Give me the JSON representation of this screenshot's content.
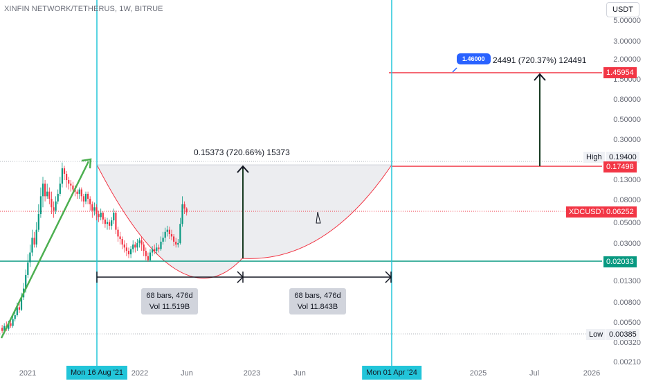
{
  "header": {
    "title": "XINFIN NETWORK/TETHERUS, 1W, BITRUE",
    "currency_button": "USDT"
  },
  "chart_data": {
    "type": "candlestick",
    "scale": "log",
    "yticks": [
      "5.00000",
      "3.00000",
      "2.00000",
      "1.50000",
      "0.80000",
      "0.50000",
      "0.30000",
      "0.13000",
      "0.08000",
      "0.05000",
      "0.03000",
      "0.01300",
      "0.00800",
      "0.00500",
      "0.00320",
      "0.00210"
    ],
    "xticks": [
      "2021",
      "2022",
      "Jun",
      "2023",
      "Jun",
      "2025",
      "Jul",
      "2026"
    ],
    "price_tags": [
      {
        "label": "",
        "value": "1.45954",
        "color": "#f23645"
      },
      {
        "label": "High",
        "value": "0.19400",
        "color": "#eff1f5"
      },
      {
        "label": "",
        "value": "0.17498",
        "color": "#f23645"
      },
      {
        "label": "XDCUSDT",
        "value": "0.06252",
        "color": "#f23645"
      },
      {
        "label": "",
        "value": "0.02033",
        "color": "#089981"
      },
      {
        "label": "Low",
        "value": "0.00385",
        "color": "#eff1f5"
      }
    ],
    "vertical_markers": [
      "Mon 16 Aug '21",
      "Mon 01 Apr '24"
    ],
    "measurements": [
      {
        "text": "68 bars, 476d",
        "vol": "Vol 11.519B"
      },
      {
        "text": "68 bars, 476d",
        "vol": "Vol 11.843B"
      }
    ],
    "annotations": {
      "cup_target": "0.15373 (720.66%) 15373",
      "breakout_target": "24491 (720.37%) 124491",
      "callout": "1.46000"
    },
    "candles": [
      [
        "2020-10",
        0.0045,
        0.0042,
        0.0048,
        0.004
      ],
      [
        "2020-11",
        0.0042,
        0.0047,
        0.005,
        0.004
      ],
      [
        "2020-12",
        0.0047,
        0.0044,
        0.0052,
        0.0042
      ],
      [
        "2020-12",
        0.0044,
        0.005,
        0.0053,
        0.0042
      ],
      [
        "2021-01",
        0.005,
        0.0047,
        0.0055,
        0.0045
      ],
      [
        "2021-01",
        0.0047,
        0.0055,
        0.006,
        0.0045
      ],
      [
        "2021-01",
        0.0055,
        0.006,
        0.0066,
        0.0052
      ],
      [
        "2021-02",
        0.006,
        0.0072,
        0.008,
        0.0058
      ],
      [
        "2021-02",
        0.0072,
        0.0068,
        0.0085,
        0.0063
      ],
      [
        "2021-02",
        0.0068,
        0.009,
        0.01,
        0.0066
      ],
      [
        "2021-03",
        0.009,
        0.011,
        0.0125,
        0.0085
      ],
      [
        "2021-03",
        0.011,
        0.015,
        0.017,
        0.01
      ],
      [
        "2021-03",
        0.015,
        0.02,
        0.024,
        0.014
      ],
      [
        "2021-04",
        0.02,
        0.025,
        0.03,
        0.018
      ],
      [
        "2021-04",
        0.025,
        0.035,
        0.042,
        0.023
      ],
      [
        "2021-04",
        0.035,
        0.03,
        0.04,
        0.028
      ],
      [
        "2021-05",
        0.03,
        0.042,
        0.05,
        0.028
      ],
      [
        "2021-05",
        0.042,
        0.06,
        0.075,
        0.04
      ],
      [
        "2021-05",
        0.06,
        0.09,
        0.11,
        0.055
      ],
      [
        "2021-05",
        0.09,
        0.12,
        0.14,
        0.07
      ],
      [
        "2021-06",
        0.12,
        0.09,
        0.13,
        0.08
      ],
      [
        "2021-06",
        0.09,
        0.1,
        0.12,
        0.085
      ],
      [
        "2021-06",
        0.1,
        0.085,
        0.11,
        0.075
      ],
      [
        "2021-07",
        0.085,
        0.07,
        0.1,
        0.06
      ],
      [
        "2021-07",
        0.07,
        0.065,
        0.08,
        0.055
      ],
      [
        "2021-07",
        0.065,
        0.08,
        0.09,
        0.06
      ],
      [
        "2021-07",
        0.08,
        0.095,
        0.105,
        0.075
      ],
      [
        "2021-08",
        0.095,
        0.12,
        0.14,
        0.09
      ],
      [
        "2021-08",
        0.12,
        0.17,
        0.194,
        0.11
      ],
      [
        "2021-08",
        0.17,
        0.15,
        0.18,
        0.13
      ],
      [
        "2021-09",
        0.15,
        0.13,
        0.16,
        0.11
      ],
      [
        "2021-09",
        0.13,
        0.12,
        0.14,
        0.105
      ],
      [
        "2021-09",
        0.12,
        0.115,
        0.13,
        0.1
      ],
      [
        "2021-10",
        0.115,
        0.105,
        0.125,
        0.095
      ],
      [
        "2021-10",
        0.105,
        0.1,
        0.115,
        0.09
      ],
      [
        "2021-10",
        0.1,
        0.095,
        0.105,
        0.085
      ],
      [
        "2021-11",
        0.095,
        0.105,
        0.11,
        0.085
      ],
      [
        "2021-11",
        0.105,
        0.09,
        0.11,
        0.08
      ],
      [
        "2021-11",
        0.09,
        0.08,
        0.095,
        0.07
      ],
      [
        "2021-12",
        0.08,
        0.095,
        0.1,
        0.075
      ],
      [
        "2021-12",
        0.095,
        0.085,
        0.1,
        0.075
      ],
      [
        "2021-12",
        0.085,
        0.075,
        0.09,
        0.065
      ],
      [
        "2022-01",
        0.075,
        0.065,
        0.08,
        0.055
      ],
      [
        "2022-01",
        0.065,
        0.07,
        0.078,
        0.058
      ],
      [
        "2022-01",
        0.07,
        0.06,
        0.075,
        0.052
      ],
      [
        "2022-02",
        0.06,
        0.056,
        0.065,
        0.05
      ],
      [
        "2022-02",
        0.056,
        0.062,
        0.068,
        0.052
      ],
      [
        "2022-03",
        0.062,
        0.053,
        0.064,
        0.048
      ],
      [
        "2022-03",
        0.053,
        0.048,
        0.056,
        0.044
      ],
      [
        "2022-04",
        0.048,
        0.05,
        0.055,
        0.042
      ],
      [
        "2022-04",
        0.05,
        0.046,
        0.053,
        0.042
      ],
      [
        "2022-05",
        0.046,
        0.052,
        0.056,
        0.042
      ],
      [
        "2022-05",
        0.052,
        0.062,
        0.068,
        0.048
      ],
      [
        "2022-05",
        0.062,
        0.042,
        0.065,
        0.038
      ],
      [
        "2022-06",
        0.042,
        0.036,
        0.045,
        0.032
      ],
      [
        "2022-06",
        0.036,
        0.034,
        0.04,
        0.03
      ],
      [
        "2022-07",
        0.034,
        0.03,
        0.036,
        0.027
      ],
      [
        "2022-07",
        0.03,
        0.028,
        0.033,
        0.025
      ],
      [
        "2022-08",
        0.028,
        0.026,
        0.031,
        0.023
      ],
      [
        "2022-08",
        0.026,
        0.024,
        0.028,
        0.022
      ],
      [
        "2022-09",
        0.024,
        0.027,
        0.029,
        0.022
      ],
      [
        "2022-09",
        0.027,
        0.03,
        0.033,
        0.025
      ],
      [
        "2022-10",
        0.03,
        0.028,
        0.032,
        0.025
      ],
      [
        "2022-10",
        0.028,
        0.031,
        0.034,
        0.026
      ],
      [
        "2022-11",
        0.031,
        0.033,
        0.035,
        0.028
      ],
      [
        "2022-11",
        0.033,
        0.03,
        0.036,
        0.026
      ],
      [
        "2022-12",
        0.03,
        0.026,
        0.032,
        0.023
      ],
      [
        "2022-12",
        0.026,
        0.023,
        0.028,
        0.021
      ],
      [
        "2023-01",
        0.023,
        0.021,
        0.025,
        0.0203
      ],
      [
        "2023-01",
        0.021,
        0.025,
        0.027,
        0.0205
      ],
      [
        "2023-02",
        0.025,
        0.027,
        0.029,
        0.023
      ],
      [
        "2023-02",
        0.027,
        0.026,
        0.03,
        0.024
      ],
      [
        "2023-03",
        0.026,
        0.028,
        0.031,
        0.024
      ],
      [
        "2023-03",
        0.028,
        0.027,
        0.03,
        0.025
      ],
      [
        "2023-04",
        0.027,
        0.032,
        0.036,
        0.026
      ],
      [
        "2023-04",
        0.032,
        0.035,
        0.04,
        0.03
      ],
      [
        "2023-05",
        0.035,
        0.04,
        0.044,
        0.032
      ],
      [
        "2023-05",
        0.04,
        0.042,
        0.046,
        0.036
      ],
      [
        "2023-06",
        0.042,
        0.038,
        0.045,
        0.034
      ],
      [
        "2023-06",
        0.038,
        0.036,
        0.042,
        0.033
      ],
      [
        "2023-06",
        0.036,
        0.032,
        0.038,
        0.029
      ],
      [
        "2023-07",
        0.032,
        0.03,
        0.035,
        0.028
      ],
      [
        "2023-07",
        0.03,
        0.031,
        0.034,
        0.028
      ],
      [
        "2023-07",
        0.031,
        0.048,
        0.055,
        0.03
      ],
      [
        "2023-08",
        0.048,
        0.075,
        0.09,
        0.045
      ],
      [
        "2023-08",
        0.075,
        0.068,
        0.08,
        0.06
      ],
      [
        "2023-08",
        0.068,
        0.0625,
        0.07,
        0.058
      ]
    ]
  }
}
